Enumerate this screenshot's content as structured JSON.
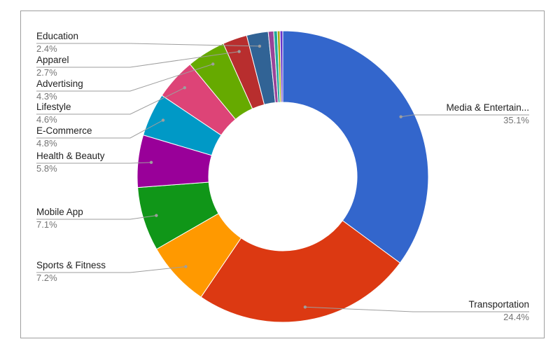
{
  "chart_data": {
    "type": "pie",
    "donut": true,
    "title": "",
    "series": [
      {
        "label": "Media & Entertain...",
        "value": 35.1,
        "pct_label": "35.1%",
        "color": "#3366cc"
      },
      {
        "label": "Transportation",
        "value": 24.4,
        "pct_label": "24.4%",
        "color": "#dc3912"
      },
      {
        "label": "Sports & Fitness",
        "value": 7.2,
        "pct_label": "7.2%",
        "color": "#ff9900"
      },
      {
        "label": "Mobile App",
        "value": 7.1,
        "pct_label": "7.1%",
        "color": "#109618"
      },
      {
        "label": "Health & Beauty",
        "value": 5.8,
        "pct_label": "5.8%",
        "color": "#990099"
      },
      {
        "label": "E-Commerce",
        "value": 4.8,
        "pct_label": "4.8%",
        "color": "#0099c6"
      },
      {
        "label": "Lifestyle",
        "value": 4.6,
        "pct_label": "4.6%",
        "color": "#dd4477"
      },
      {
        "label": "Advertising",
        "value": 4.3,
        "pct_label": "4.3%",
        "color": "#66aa00"
      },
      {
        "label": "Apparel",
        "value": 2.7,
        "pct_label": "2.7%",
        "color": "#b82e2e"
      },
      {
        "label": "Education",
        "value": 2.4,
        "pct_label": "2.4%",
        "color": "#316395"
      },
      {
        "label": "",
        "value": 0.6,
        "color": "#994499"
      },
      {
        "label": "",
        "value": 0.4,
        "color": "#22aa99"
      },
      {
        "label": "",
        "value": 0.3,
        "color": "#aaaa11"
      },
      {
        "label": "",
        "value": 0.3,
        "color": "#6633cc"
      }
    ],
    "legend": "none",
    "labels": "outside with leader lines"
  }
}
